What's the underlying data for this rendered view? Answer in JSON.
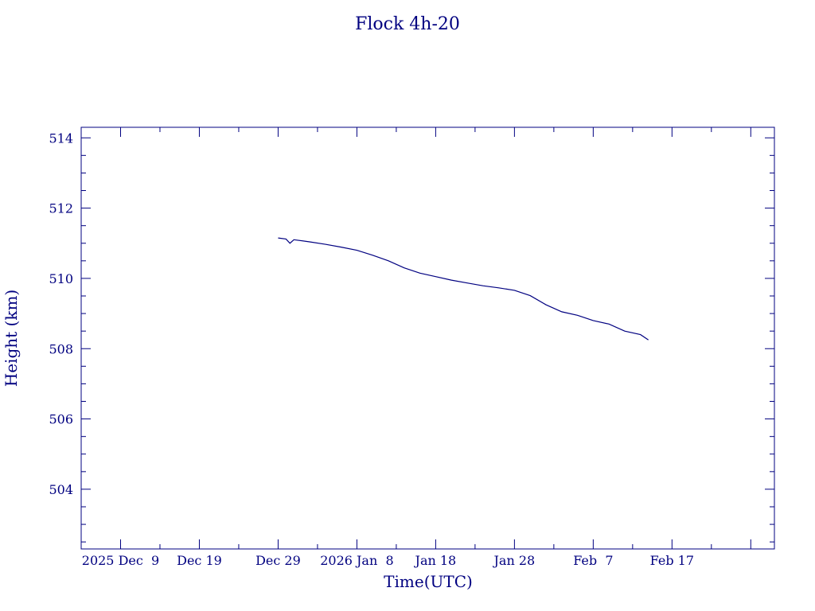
{
  "chart_data": {
    "type": "line",
    "title": "Flock 4h-20",
    "xlabel": "Time(UTC)",
    "ylabel": "Height (km)",
    "colors": {
      "axes": "#000080",
      "line": "#000080",
      "background": "#ffffff"
    },
    "grid": false,
    "legend": "none",
    "xlim": [
      "2025-11-24",
      "2026-02-20"
    ],
    "ylim": [
      502.3,
      514.3
    ],
    "x_ticks": [
      {
        "date": "2025-11-29",
        "label": "2025 Dec  9"
      },
      {
        "date": "2025-12-09",
        "label": "Dec 19"
      },
      {
        "date": "2025-12-19",
        "label": "Dec 29"
      },
      {
        "date": "2025-12-29",
        "label": "2026 Jan  8"
      },
      {
        "date": "2026-01-08",
        "label": "Jan 18"
      },
      {
        "date": "2026-01-18",
        "label": "Jan 28"
      },
      {
        "date": "2026-01-28",
        "label": "Feb  7"
      },
      {
        "date": "2026-02-07",
        "label": "Feb 17"
      },
      {
        "date": "2026-02-17",
        "label": ""
      }
    ],
    "y_ticks": [
      504,
      506,
      508,
      510,
      512,
      514
    ],
    "series": [
      {
        "x": [
          "2025-12-19",
          "2025-12-20",
          "2025-12-20T12:00",
          "2025-12-21",
          "2025-12-23",
          "2025-12-25",
          "2025-12-27",
          "2025-12-29",
          "2025-12-31",
          "2026-01-02",
          "2026-01-04",
          "2026-01-06",
          "2026-01-08",
          "2026-01-10",
          "2026-01-12",
          "2026-01-14",
          "2026-01-16",
          "2026-01-18",
          "2026-01-20",
          "2026-01-22",
          "2026-01-24",
          "2026-01-26",
          "2026-01-28",
          "2026-01-30",
          "2026-02-01",
          "2026-02-03",
          "2026-02-04"
        ],
        "y": [
          511.15,
          511.12,
          511.0,
          511.1,
          511.04,
          510.97,
          510.89,
          510.8,
          510.66,
          510.5,
          510.3,
          510.15,
          510.05,
          509.95,
          509.87,
          509.79,
          509.73,
          509.66,
          509.51,
          509.25,
          509.05,
          508.95,
          508.8,
          508.7,
          508.5,
          508.4,
          508.25
        ]
      }
    ]
  }
}
